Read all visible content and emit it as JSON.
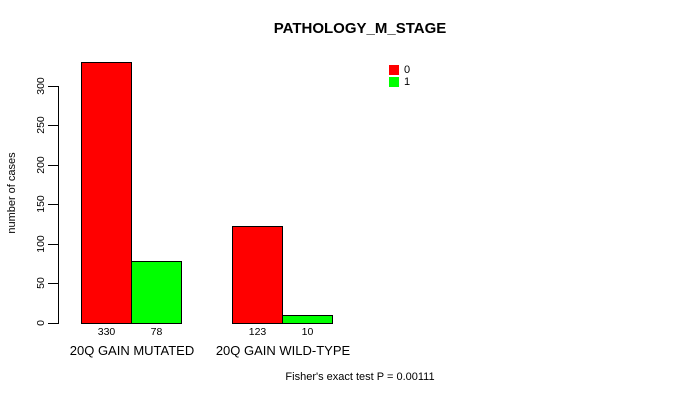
{
  "title": "PATHOLOGY_M_STAGE",
  "y_axis_label": "number of cases",
  "footer_note": "Fisher's exact test P = 0.00111",
  "colors": {
    "series0": "#FF0000",
    "series1": "#00FF00",
    "axis": "#000000",
    "background": "#FFFFFF"
  },
  "chart_data": {
    "type": "bar",
    "title": "PATHOLOGY_M_STAGE",
    "xlabel": "",
    "ylabel": "number of cases",
    "categories": [
      "20Q GAIN MUTATED",
      "20Q GAIN WILD-TYPE"
    ],
    "series": [
      {
        "name": "0",
        "color": "#FF0000",
        "values": [
          330,
          123
        ]
      },
      {
        "name": "1",
        "color": "#00FF00",
        "values": [
          78,
          10
        ]
      }
    ],
    "bar_value_labels": [
      [
        "330",
        "78"
      ],
      [
        "123",
        "10"
      ]
    ],
    "yticks": [
      0,
      50,
      100,
      150,
      200,
      250,
      300
    ],
    "ylim": [
      0,
      340
    ],
    "grid": false,
    "legend": {
      "position": "top-right",
      "entries": [
        {
          "label": "0",
          "color": "#FF0000"
        },
        {
          "label": "1",
          "color": "#00FF00"
        }
      ]
    },
    "annotation": "Fisher's exact test P = 0.00111"
  }
}
